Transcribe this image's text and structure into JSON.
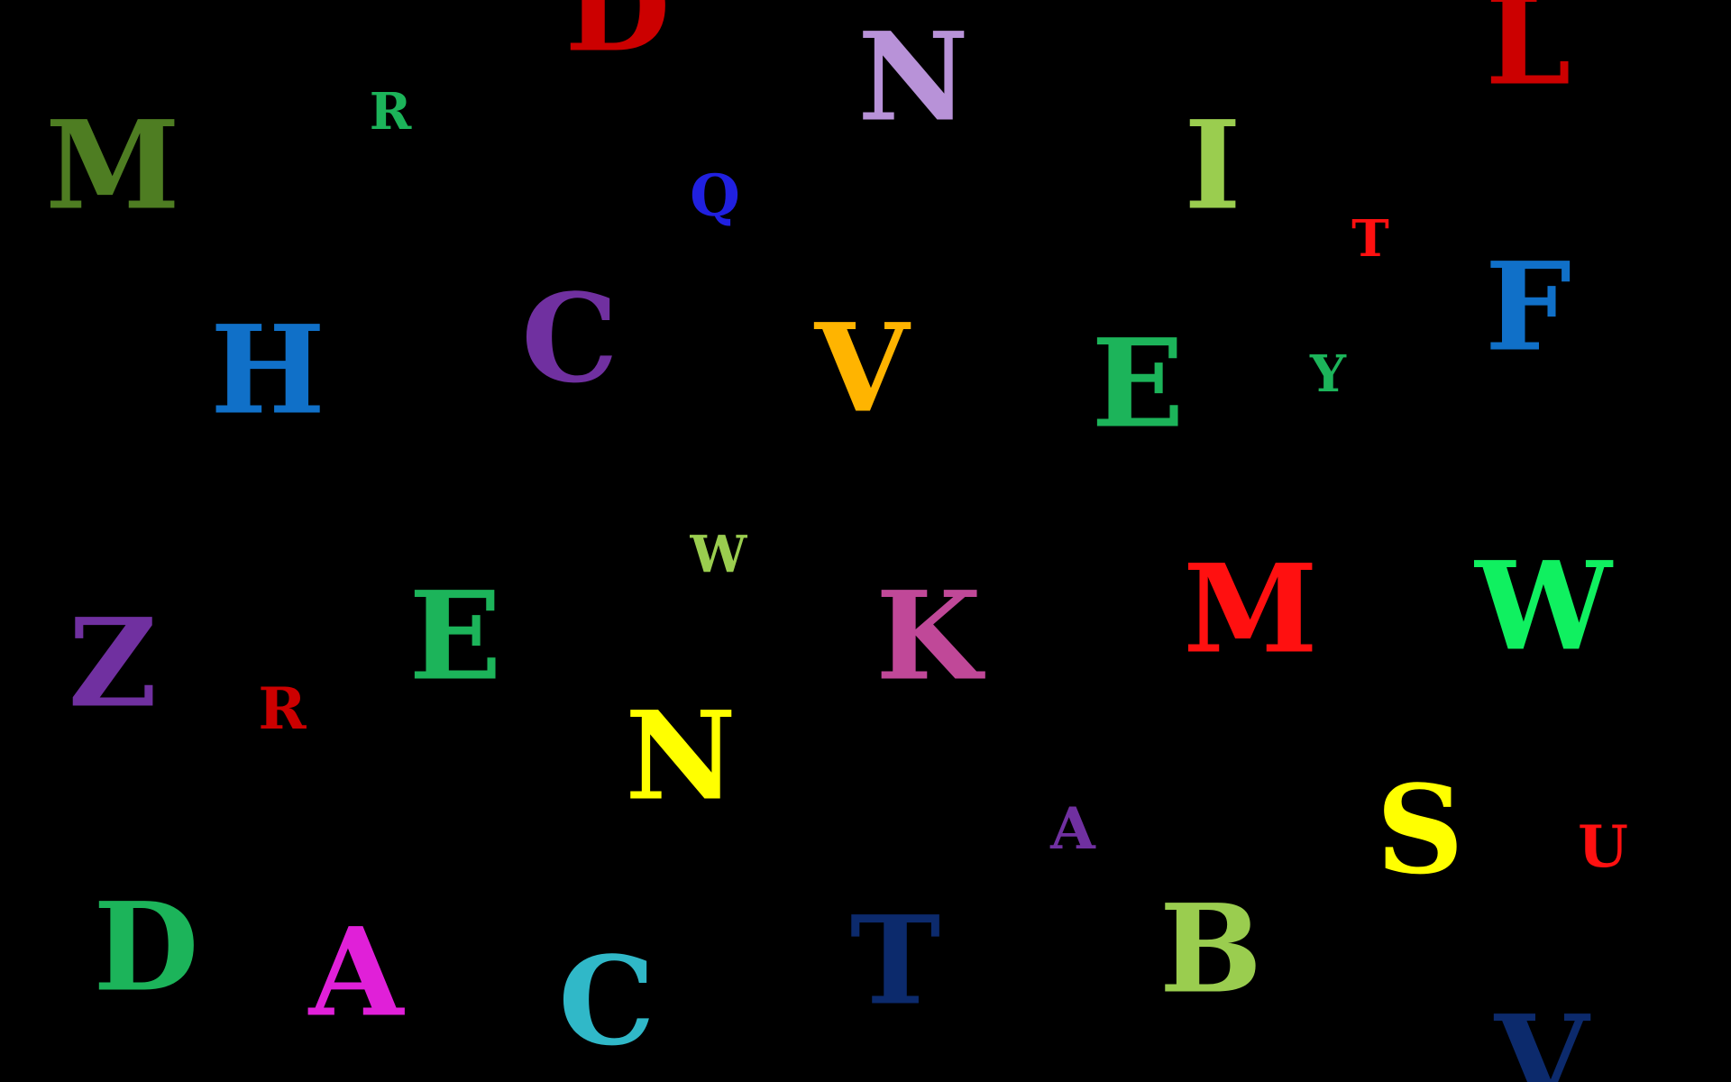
{
  "letters": [
    {
      "char": "D",
      "color": "#cc0000"
    },
    {
      "char": "N",
      "color": "#b892d8"
    },
    {
      "char": "L",
      "color": "#cc0000"
    },
    {
      "char": "M",
      "color": "#4e7d22"
    },
    {
      "char": "R",
      "color": "#1cb45a"
    },
    {
      "char": "Q",
      "color": "#2020e0"
    },
    {
      "char": "I",
      "color": "#9acd4f"
    },
    {
      "char": "T",
      "color": "#ff1010"
    },
    {
      "char": "H",
      "color": "#1070c8"
    },
    {
      "char": "C",
      "color": "#7030a0"
    },
    {
      "char": "V",
      "color": "#ffb400"
    },
    {
      "char": "E",
      "color": "#1cb45a"
    },
    {
      "char": "Y",
      "color": "#1cb45a"
    },
    {
      "char": "F",
      "color": "#1070c8"
    },
    {
      "char": "W",
      "color": "#9acd4f"
    },
    {
      "char": "Z",
      "color": "#7030a0"
    },
    {
      "char": "R",
      "color": "#cc0000"
    },
    {
      "char": "E",
      "color": "#1cb45a"
    },
    {
      "char": "N",
      "color": "#ffff00"
    },
    {
      "char": "K",
      "color": "#c04898"
    },
    {
      "char": "M",
      "color": "#ff1010"
    },
    {
      "char": "W",
      "color": "#10f060"
    },
    {
      "char": "A",
      "color": "#7030a0"
    },
    {
      "char": "S",
      "color": "#ffff00"
    },
    {
      "char": "U",
      "color": "#ff1010"
    },
    {
      "char": "D",
      "color": "#1cb45a"
    },
    {
      "char": "A",
      "color": "#e020d8"
    },
    {
      "char": "C",
      "color": "#30b8c8"
    },
    {
      "char": "T",
      "color": "#0c2a6c"
    },
    {
      "char": "B",
      "color": "#9acd4f"
    },
    {
      "char": "V",
      "color": "#0c2a6c"
    }
  ]
}
